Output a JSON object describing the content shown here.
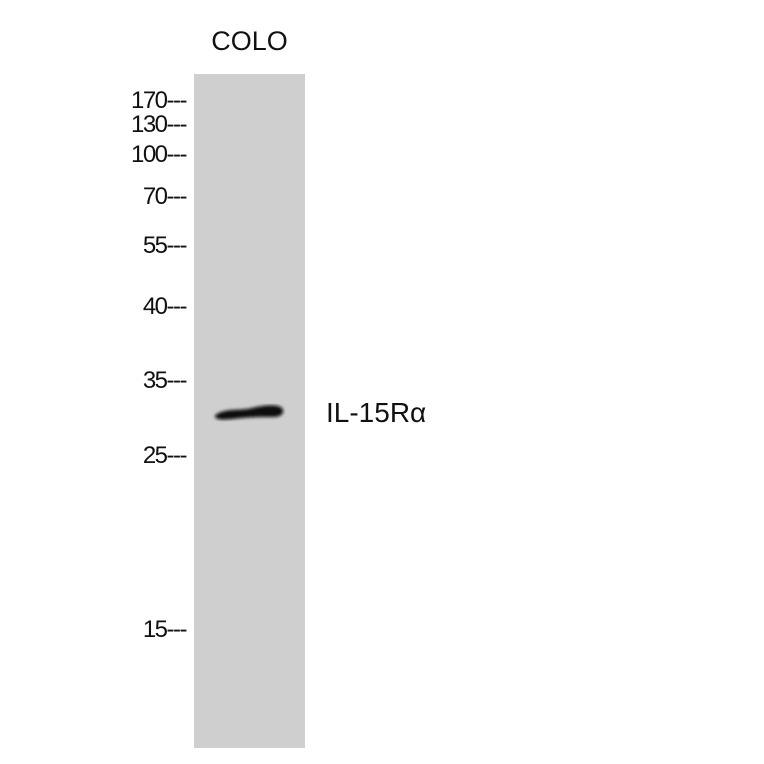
{
  "lanes": [
    {
      "label": "COLO"
    }
  ],
  "markers": [
    {
      "label": "170",
      "kda": 170
    },
    {
      "label": "130",
      "kda": 130
    },
    {
      "label": "100",
      "kda": 100
    },
    {
      "label": "70",
      "kda": 70
    },
    {
      "label": "55",
      "kda": 55
    },
    {
      "label": "40",
      "kda": 40
    },
    {
      "label": "35",
      "kda": 35
    },
    {
      "label": "25",
      "kda": 25
    },
    {
      "label": "15",
      "kda": 15
    }
  ],
  "marker_dash": "---",
  "band": {
    "protein_label": "IL-15Rα",
    "lane": "COLO"
  },
  "colors": {
    "lane": "#cfcfcf",
    "band": "#0a0a0a"
  }
}
